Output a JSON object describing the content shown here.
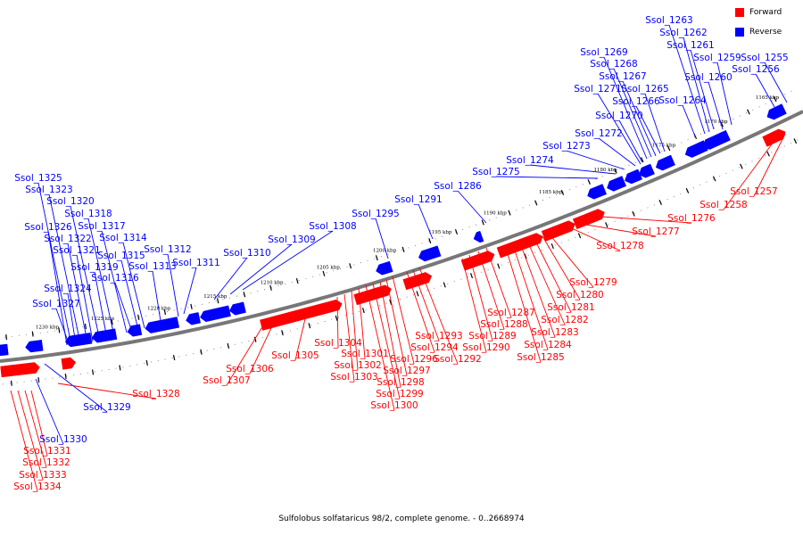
{
  "caption": "Sulfolobus solfataricus 98/2, complete genome. - 0..2668974",
  "legend": {
    "forward_label": "Forward",
    "reverse_label": "Reverse",
    "forward_color": "#ff0000",
    "reverse_color": "#0000ff"
  },
  "ticks": [
    "1165 kbp",
    "1170 kbp",
    "1175 kbp",
    "1180 kbp",
    "1185 kbp",
    "1190 kbp",
    "1195 kbp",
    "1200 kbp",
    "1205 kbp",
    "1210 kbp",
    "1215 kbp",
    "1220 kbp",
    "1225 kbp",
    "1230 kbp"
  ],
  "reverse_genes": [
    "Ssol_1255",
    "Ssol_1256",
    "Ssol_1259",
    "Ssol_1260",
    "Ssol_1261",
    "Ssol_1262",
    "Ssol_1263",
    "Ssol_1264",
    "Ssol_1265",
    "Ssol_1266",
    "Ssol_1267",
    "Ssol_1268",
    "Ssol_1269",
    "Ssol_1270",
    "Ssol_1271",
    "Ssol_1272",
    "Ssol_1273",
    "Ssol_1274",
    "Ssol_1275",
    "Ssol_1286",
    "Ssol_1291",
    "Ssol_1295",
    "Ssol_1308",
    "Ssol_1309",
    "Ssol_1310",
    "Ssol_1311",
    "Ssol_1312",
    "Ssol_1313",
    "Ssol_1314",
    "Ssol_1315",
    "Ssol_1316",
    "Ssol_1317",
    "Ssol_1318",
    "Ssol_1319",
    "Ssol_1320",
    "Ssol_1321",
    "Ssol_1322",
    "Ssol_1323",
    "Ssol_1324",
    "Ssol_1325",
    "Ssol_1326",
    "Ssol_1327",
    "Ssol_1329",
    "Ssol_1330"
  ],
  "forward_genes": [
    "Ssol_1257",
    "Ssol_1258",
    "Ssol_1276",
    "Ssol_1277",
    "Ssol_1278",
    "Ssol_1279",
    "Ssol_1280",
    "Ssol_1281",
    "Ssol_1282",
    "Ssol_1283",
    "Ssol_1284",
    "Ssol_1285",
    "Ssol_1287",
    "Ssol_1288",
    "Ssol_1289",
    "Ssol_1290",
    "Ssol_1292",
    "Ssol_1293",
    "Ssol_1294",
    "Ssol_1296",
    "Ssol_1297",
    "Ssol_1298",
    "Ssol_1299",
    "Ssol_1300",
    "Ssol_1301",
    "Ssol_1302",
    "Ssol_1303",
    "Ssol_1304",
    "Ssol_1305",
    "Ssol_1306",
    "Ssol_1307",
    "Ssol_1328",
    "Ssol_1331",
    "Ssol_1332",
    "Ssol_1333",
    "Ssol_1334"
  ]
}
